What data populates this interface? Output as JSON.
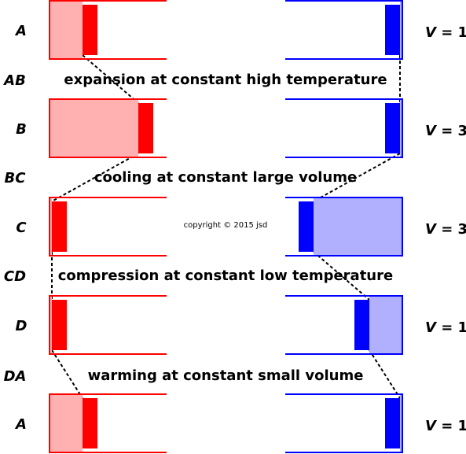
{
  "copyright": "copyright © 2015 jsd",
  "colors": {
    "hot": "#ff0000",
    "hot_gas": "#ffb0b0",
    "cold": "#0000ff",
    "cold_gas": "#b0b0ff",
    "link": "#000000"
  },
  "states": [
    {
      "label": "A",
      "hot_fill": 0.32,
      "cold_fill": 0.02,
      "volume": "V = 1",
      "v": "V",
      "eq": " = 1"
    },
    {
      "label": "B",
      "hot_fill": 0.87,
      "cold_fill": 0.02,
      "volume": "V = 3",
      "v": "V",
      "eq": " = 3"
    },
    {
      "label": "C",
      "hot_fill": 0.02,
      "cold_fill": 0.87,
      "volume": "V = 3",
      "v": "V",
      "eq": " = 3"
    },
    {
      "label": "D",
      "hot_fill": 0.02,
      "cold_fill": 0.32,
      "volume": "V = 1",
      "v": "V",
      "eq": " = 1"
    },
    {
      "label": "A",
      "hot_fill": 0.32,
      "cold_fill": 0.02,
      "volume": "V = 1",
      "v": "V",
      "eq": " = 1"
    }
  ],
  "transitions": [
    {
      "label": "AB",
      "description": "expansion at constant high temperature"
    },
    {
      "label": "BC",
      "description": "cooling at constant large volume"
    },
    {
      "label": "CD",
      "description": "compression at constant low temperature"
    },
    {
      "label": "DA",
      "description": "warming at constant small volume"
    }
  ]
}
